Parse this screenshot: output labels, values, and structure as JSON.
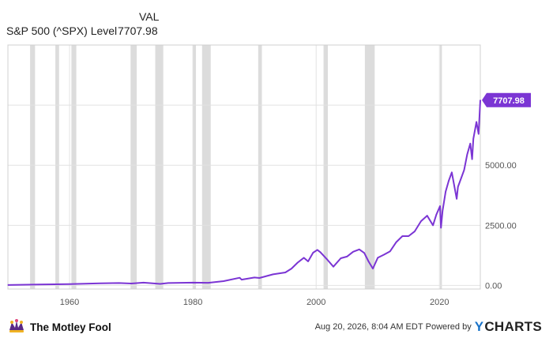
{
  "legend": {
    "column_header": "VAL",
    "series_name": "S&P 500 (^SPX) Level",
    "series_value": "7707.98"
  },
  "colors": {
    "line": "#7b35d4",
    "recession_band": "#dcdcdc",
    "grid": "#e2e2e2",
    "plot_border": "#d0d0d0",
    "label_badge": "#7b35d4"
  },
  "chart_data": {
    "type": "line",
    "title": "",
    "xlabel": "",
    "ylabel": "",
    "xlim": [
      1950,
      2026.63
    ],
    "ylim": [
      -150,
      10000
    ],
    "x_ticks": [
      1960,
      1980,
      2000,
      2020
    ],
    "y_ticks": [
      0,
      2500,
      5000
    ],
    "y_tick_labels": [
      "0.00",
      "2500.00",
      "5000.00"
    ],
    "last_value_label": "7707.98",
    "grid": true,
    "recessions": [
      [
        1953.6,
        1954.4
      ],
      [
        1957.7,
        1958.3
      ],
      [
        1960.3,
        1961.1
      ],
      [
        1969.9,
        1970.9
      ],
      [
        1973.9,
        1975.2
      ],
      [
        1980.0,
        1980.5
      ],
      [
        1981.5,
        1982.9
      ],
      [
        1990.6,
        1991.2
      ],
      [
        2001.2,
        2001.9
      ],
      [
        2007.9,
        2009.5
      ],
      [
        2020.1,
        2020.4
      ]
    ],
    "series": [
      {
        "name": "S&P 500 (^SPX) Level",
        "x": [
          1950,
          1955,
          1960,
          1965,
          1968,
          1970,
          1972,
          1974.7,
          1976,
          1980,
          1982.5,
          1985,
          1987.6,
          1987.9,
          1990,
          1990.8,
          1993,
          1995,
          1996,
          1997,
          1998,
          1998.7,
          1999.5,
          2000.2,
          2000.7,
          2001.7,
          2002.8,
          2004,
          2005,
          2006,
          2007,
          2007.8,
          2008.5,
          2009.2,
          2010,
          2011,
          2012,
          2013,
          2014,
          2015,
          2016,
          2017,
          2018,
          2018.95,
          2019.5,
          2020.1,
          2020.25,
          2020.5,
          2021,
          2021.5,
          2022,
          2022.8,
          2023,
          2023.5,
          2024,
          2024.5,
          2025,
          2025.3,
          2025.5,
          2026,
          2026.35,
          2026.63
        ],
        "y": [
          17,
          40,
          57,
          88,
          100,
          80,
          115,
          65,
          100,
          115,
          110,
          180,
          320,
          240,
          330,
          310,
          460,
          540,
          700,
          950,
          1150,
          1000,
          1360,
          1480,
          1380,
          1100,
          780,
          1130,
          1200,
          1400,
          1500,
          1350,
          1000,
          700,
          1150,
          1280,
          1420,
          1800,
          2050,
          2050,
          2250,
          2670,
          2900,
          2500,
          2950,
          3300,
          2400,
          3100,
          3900,
          4350,
          4700,
          3600,
          4100,
          4450,
          4800,
          5450,
          5900,
          5250,
          6100,
          6800,
          6300,
          7707.98
        ]
      }
    ]
  },
  "footer": {
    "brand": "The Motley Fool",
    "timestamp": "Aug 20, 2026, 8:04 AM EDT",
    "powered_by": "Powered by",
    "ycharts_y": "Y",
    "ycharts_rest": "CHARTS"
  }
}
